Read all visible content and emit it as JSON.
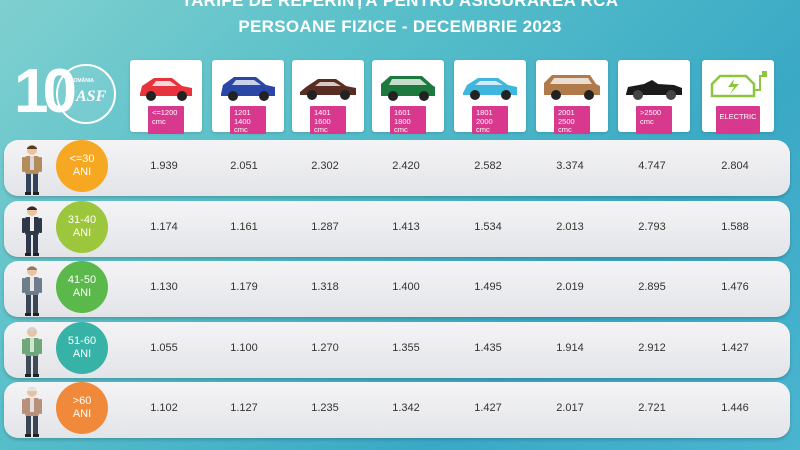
{
  "title": {
    "line1": "TARIFE DE REFERINȚĂ PENTRU ASIGURAREA RCA",
    "line2": "PERSOANE FIZICE - DECEMBRIE 2023"
  },
  "logo": {
    "number": "10",
    "asf": "ASF",
    "tiny": "ROMÂNIA"
  },
  "columns": [
    {
      "line1": "<=1200",
      "line2": "cmc",
      "color": "#e8323c"
    },
    {
      "line1": "1201",
      "line2": "1400",
      "line3": "cmc",
      "color": "#2a47a8"
    },
    {
      "line1": "1401",
      "line2": "1600",
      "line3": "cmc",
      "color": "#5a2d22"
    },
    {
      "line1": "1601",
      "line2": "1800",
      "line3": "cmc",
      "color": "#1c7a3e"
    },
    {
      "line1": "1801",
      "line2": "2000",
      "line3": "cmc",
      "color": "#3fb6de"
    },
    {
      "line1": "2001",
      "line2": "2500",
      "line3": "cmc",
      "color": "#b07a4a"
    },
    {
      "line1": ">2500",
      "line2": "cmc",
      "color": "#1a1a1a"
    },
    {
      "line1": "ELECTRIC",
      "color": "#8cc63f"
    }
  ],
  "rows": [
    {
      "age_line1": "<=30",
      "age_line2": "ANI",
      "color": "#f7a823",
      "values": [
        "1.939",
        "2.051",
        "2.302",
        "2.420",
        "2.582",
        "3.374",
        "4.747",
        "2.804"
      ]
    },
    {
      "age_line1": "31-40",
      "age_line2": "ANI",
      "color": "#9cc63b",
      "values": [
        "1.174",
        "1.161",
        "1.287",
        "1.413",
        "1.534",
        "2.013",
        "2.793",
        "1.588"
      ]
    },
    {
      "age_line1": "41-50",
      "age_line2": "ANI",
      "color": "#5bb84a",
      "values": [
        "1.130",
        "1.179",
        "1.318",
        "1.400",
        "1.495",
        "2.019",
        "2.895",
        "1.476"
      ]
    },
    {
      "age_line1": "51-60",
      "age_line2": "ANI",
      "color": "#36b3a6",
      "values": [
        "1.055",
        "1.100",
        "1.270",
        "1.355",
        "1.435",
        "1.914",
        "2.912",
        "1.427"
      ]
    },
    {
      "age_line1": ">60",
      "age_line2": "ANI",
      "color": "#f08a3a",
      "values": [
        "1.102",
        "1.127",
        "1.235",
        "1.342",
        "1.427",
        "2.017",
        "2.721",
        "1.446"
      ]
    }
  ]
}
